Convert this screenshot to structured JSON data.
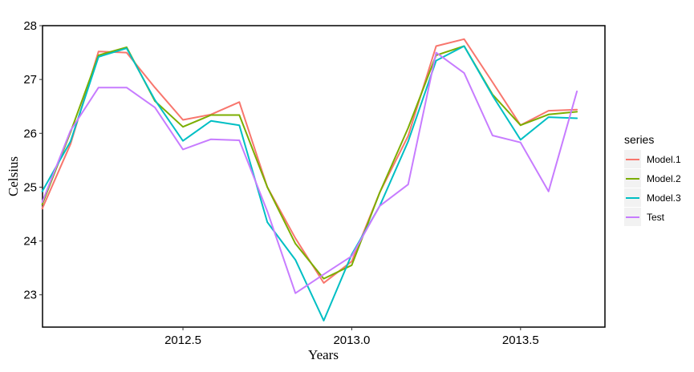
{
  "chart_data": {
    "type": "line",
    "xlabel": "Years",
    "ylabel": "Celsius",
    "xlim": [
      2012.084,
      2013.75
    ],
    "ylim": [
      22.4,
      28.0
    ],
    "xticks": [
      2012.5,
      2013.0,
      2013.5
    ],
    "xtick_labels": [
      "2012.5",
      "2013.0",
      "2013.5"
    ],
    "yticks": [
      23,
      24,
      25,
      26,
      27,
      28
    ],
    "ytick_labels": [
      "23",
      "24",
      "25",
      "26",
      "27",
      "28"
    ],
    "grid": false,
    "legend": {
      "title": "series",
      "placement": "right"
    },
    "x": [
      2012.083,
      2012.167,
      2012.25,
      2012.333,
      2012.417,
      2012.5,
      2012.583,
      2012.667,
      2012.75,
      2012.833,
      2012.917,
      2013.0,
      2013.083,
      2013.167,
      2013.25,
      2013.333,
      2013.417,
      2013.5,
      2013.583,
      2013.667
    ],
    "series": [
      {
        "name": "Model.1",
        "color": "#F8766D",
        "values": [
          24.6,
          25.8,
          27.52,
          27.5,
          26.85,
          26.25,
          26.35,
          26.58,
          25.0,
          24.05,
          23.22,
          23.62,
          24.9,
          25.95,
          27.62,
          27.75,
          26.95,
          26.15,
          26.42,
          26.44
        ]
      },
      {
        "name": "Model.2",
        "color": "#7CAE00",
        "values": [
          24.68,
          26.02,
          27.45,
          27.6,
          26.6,
          26.12,
          26.34,
          26.34,
          25.0,
          23.95,
          23.3,
          23.55,
          24.9,
          26.1,
          27.45,
          27.62,
          26.72,
          26.15,
          26.35,
          26.4
        ]
      },
      {
        "name": "Model.3",
        "color": "#00BFC4",
        "values": [
          24.92,
          25.85,
          27.42,
          27.58,
          26.62,
          25.86,
          26.23,
          26.15,
          24.35,
          23.65,
          22.52,
          23.75,
          24.65,
          25.85,
          27.35,
          27.62,
          26.7,
          25.88,
          26.3,
          26.28
        ]
      },
      {
        "name": "Test",
        "color": "#C77CFF",
        "values": [
          24.72,
          26.05,
          26.85,
          26.85,
          26.48,
          25.7,
          25.89,
          25.87,
          24.55,
          23.03,
          23.38,
          23.72,
          24.65,
          25.05,
          27.5,
          27.12,
          25.96,
          25.83,
          24.92,
          26.78
        ]
      }
    ]
  }
}
